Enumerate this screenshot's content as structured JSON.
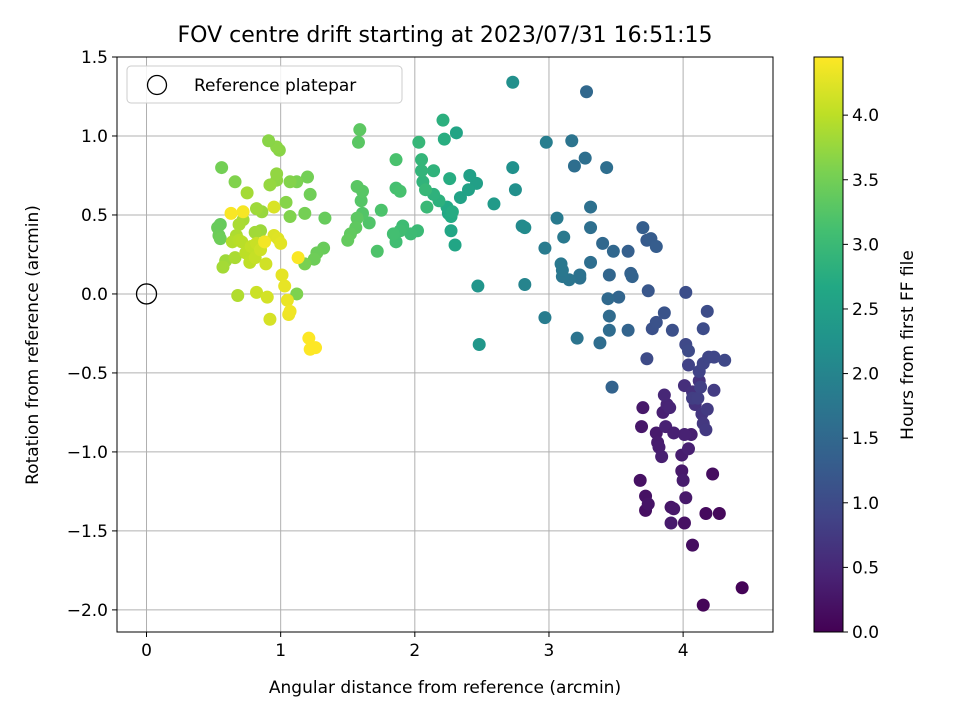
{
  "chart_data": {
    "type": "scatter",
    "title": "FOV centre drift starting at 2023/07/31 16:51:15",
    "xlabel": "Angular distance from reference (arcmin)",
    "ylabel": "Rotation from reference (arcmin)",
    "xlim": [
      -0.22,
      4.67
    ],
    "ylim": [
      -2.14,
      1.5
    ],
    "x_ticks": [
      0,
      1,
      2,
      3,
      4
    ],
    "x_tick_labels": [
      "0",
      "1",
      "2",
      "3",
      "4"
    ],
    "y_ticks": [
      -2.0,
      -1.5,
      -1.0,
      -0.5,
      0.0,
      0.5,
      1.0,
      1.5
    ],
    "y_tick_labels": [
      "−2.0",
      "−1.5",
      "−1.0",
      "−0.5",
      "0.0",
      "0.5",
      "1.0",
      "1.5"
    ],
    "grid": true,
    "legend": {
      "position": "upper-left",
      "entries": [
        "Reference platepar"
      ]
    },
    "reference_point": {
      "x": 0.0,
      "y": 0.0
    },
    "colorbar": {
      "label": "Hours from first FF file",
      "range": [
        0.0,
        4.45
      ],
      "ticks": [
        0.0,
        0.5,
        1.0,
        1.5,
        2.0,
        2.5,
        3.0,
        3.5,
        4.0
      ],
      "tick_labels": [
        "0.0",
        "0.5",
        "1.0",
        "1.5",
        "2.0",
        "2.5",
        "3.0",
        "3.5",
        "4.0"
      ],
      "colormap": "viridis"
    },
    "points": [
      {
        "x": 4.44,
        "y": -1.86,
        "h": 0.04
      },
      {
        "x": 4.15,
        "y": -1.97,
        "h": 0.06
      },
      {
        "x": 4.27,
        "y": -1.39,
        "h": 0.1
      },
      {
        "x": 4.17,
        "y": -1.39,
        "h": 0.12
      },
      {
        "x": 4.22,
        "y": -1.14,
        "h": 0.15
      },
      {
        "x": 3.72,
        "y": -1.28,
        "h": 0.22
      },
      {
        "x": 3.68,
        "y": -1.18,
        "h": 0.2
      },
      {
        "x": 3.72,
        "y": -1.37,
        "h": 0.18
      },
      {
        "x": 3.74,
        "y": -1.33,
        "h": 0.24
      },
      {
        "x": 3.91,
        "y": -1.35,
        "h": 0.26
      },
      {
        "x": 3.93,
        "y": -1.36,
        "h": 0.28
      },
      {
        "x": 4.02,
        "y": -1.29,
        "h": 0.3
      },
      {
        "x": 3.91,
        "y": -1.45,
        "h": 0.32
      },
      {
        "x": 4.01,
        "y": -1.45,
        "h": 0.2
      },
      {
        "x": 4.07,
        "y": -1.59,
        "h": 0.16
      },
      {
        "x": 3.99,
        "y": -1.12,
        "h": 0.3
      },
      {
        "x": 4.0,
        "y": -1.18,
        "h": 0.34
      },
      {
        "x": 3.99,
        "y": -1.02,
        "h": 0.36
      },
      {
        "x": 4.04,
        "y": -0.98,
        "h": 0.4
      },
      {
        "x": 4.06,
        "y": -0.89,
        "h": 0.38
      },
      {
        "x": 4.01,
        "y": -0.89,
        "h": 0.42
      },
      {
        "x": 3.7,
        "y": -0.72,
        "h": 0.3
      },
      {
        "x": 3.69,
        "y": -0.84,
        "h": 0.28
      },
      {
        "x": 3.8,
        "y": -0.88,
        "h": 0.32
      },
      {
        "x": 3.81,
        "y": -0.94,
        "h": 0.34
      },
      {
        "x": 3.82,
        "y": -0.97,
        "h": 0.36
      },
      {
        "x": 3.84,
        "y": -1.03,
        "h": 0.38
      },
      {
        "x": 3.85,
        "y": -0.75,
        "h": 0.4
      },
      {
        "x": 3.87,
        "y": -0.84,
        "h": 0.42
      },
      {
        "x": 3.88,
        "y": -0.7,
        "h": 0.44
      },
      {
        "x": 3.9,
        "y": -0.72,
        "h": 0.46
      },
      {
        "x": 3.86,
        "y": -0.64,
        "h": 0.48
      },
      {
        "x": 3.93,
        "y": -0.88,
        "h": 0.4
      },
      {
        "x": 4.01,
        "y": -0.58,
        "h": 0.6
      },
      {
        "x": 4.07,
        "y": -0.62,
        "h": 0.62
      },
      {
        "x": 4.09,
        "y": -0.7,
        "h": 0.64
      },
      {
        "x": 4.12,
        "y": -0.55,
        "h": 0.66
      },
      {
        "x": 4.14,
        "y": -0.76,
        "h": 0.7
      },
      {
        "x": 4.15,
        "y": -0.82,
        "h": 0.72
      },
      {
        "x": 4.17,
        "y": -0.86,
        "h": 0.74
      },
      {
        "x": 4.18,
        "y": -0.73,
        "h": 0.76
      },
      {
        "x": 4.23,
        "y": -0.61,
        "h": 0.78
      },
      {
        "x": 4.07,
        "y": -0.66,
        "h": 0.8
      },
      {
        "x": 4.11,
        "y": -0.66,
        "h": 0.82
      },
      {
        "x": 4.13,
        "y": -0.59,
        "h": 0.84
      },
      {
        "x": 4.04,
        "y": -0.45,
        "h": 0.86
      },
      {
        "x": 4.12,
        "y": -0.49,
        "h": 0.88
      },
      {
        "x": 4.15,
        "y": -0.44,
        "h": 0.9
      },
      {
        "x": 4.19,
        "y": -0.4,
        "h": 0.92
      },
      {
        "x": 4.23,
        "y": -0.4,
        "h": 0.94
      },
      {
        "x": 4.31,
        "y": -0.42,
        "h": 0.96
      },
      {
        "x": 4.02,
        "y": -0.32,
        "h": 0.98
      },
      {
        "x": 4.04,
        "y": -0.36,
        "h": 1.0
      },
      {
        "x": 4.15,
        "y": -0.22,
        "h": 1.02
      },
      {
        "x": 4.18,
        "y": -0.11,
        "h": 1.04
      },
      {
        "x": 4.02,
        "y": 0.01,
        "h": 1.06
      },
      {
        "x": 3.92,
        "y": -0.23,
        "h": 1.08
      },
      {
        "x": 3.77,
        "y": -0.22,
        "h": 1.1
      },
      {
        "x": 3.8,
        "y": -0.18,
        "h": 1.12
      },
      {
        "x": 3.86,
        "y": -0.12,
        "h": 1.14
      },
      {
        "x": 3.73,
        "y": -0.41,
        "h": 1.0
      },
      {
        "x": 3.74,
        "y": 0.02,
        "h": 1.2
      },
      {
        "x": 3.73,
        "y": 0.34,
        "h": 1.25
      },
      {
        "x": 3.76,
        "y": 0.35,
        "h": 1.28
      },
      {
        "x": 3.8,
        "y": 0.3,
        "h": 1.3
      },
      {
        "x": 3.7,
        "y": 0.42,
        "h": 1.32
      },
      {
        "x": 3.59,
        "y": 0.27,
        "h": 1.35
      },
      {
        "x": 3.61,
        "y": 0.13,
        "h": 1.38
      },
      {
        "x": 3.62,
        "y": 0.11,
        "h": 1.4
      },
      {
        "x": 3.59,
        "y": -0.23,
        "h": 1.42
      },
      {
        "x": 3.52,
        "y": -0.02,
        "h": 1.44
      },
      {
        "x": 3.45,
        "y": 0.12,
        "h": 1.46
      },
      {
        "x": 3.48,
        "y": 0.27,
        "h": 1.48
      },
      {
        "x": 3.4,
        "y": 0.32,
        "h": 1.5
      },
      {
        "x": 3.44,
        "y": -0.03,
        "h": 1.52
      },
      {
        "x": 3.45,
        "y": -0.14,
        "h": 1.54
      },
      {
        "x": 3.45,
        "y": -0.23,
        "h": 1.56
      },
      {
        "x": 3.47,
        "y": -0.59,
        "h": 1.4
      },
      {
        "x": 3.38,
        "y": -0.31,
        "h": 1.58
      },
      {
        "x": 3.31,
        "y": 0.2,
        "h": 1.6
      },
      {
        "x": 3.31,
        "y": 0.42,
        "h": 1.62
      },
      {
        "x": 3.31,
        "y": 0.55,
        "h": 1.64
      },
      {
        "x": 3.43,
        "y": 0.8,
        "h": 1.6
      },
      {
        "x": 3.23,
        "y": 0.1,
        "h": 1.66
      },
      {
        "x": 3.23,
        "y": 0.12,
        "h": 1.68
      },
      {
        "x": 3.21,
        "y": -0.28,
        "h": 1.7
      },
      {
        "x": 3.15,
        "y": 0.09,
        "h": 1.72
      },
      {
        "x": 3.1,
        "y": 0.11,
        "h": 1.74
      },
      {
        "x": 3.1,
        "y": 0.15,
        "h": 1.76
      },
      {
        "x": 3.09,
        "y": 0.19,
        "h": 1.78
      },
      {
        "x": 3.11,
        "y": 0.36,
        "h": 1.8
      },
      {
        "x": 3.06,
        "y": 0.48,
        "h": 1.82
      },
      {
        "x": 2.97,
        "y": 0.29,
        "h": 1.84
      },
      {
        "x": 2.97,
        "y": -0.15,
        "h": 1.86
      },
      {
        "x": 3.19,
        "y": 0.81,
        "h": 1.6
      },
      {
        "x": 3.27,
        "y": 0.86,
        "h": 1.62
      },
      {
        "x": 3.28,
        "y": 1.28,
        "h": 1.5
      },
      {
        "x": 3.17,
        "y": 0.97,
        "h": 1.7
      },
      {
        "x": 2.98,
        "y": 0.96,
        "h": 1.88
      },
      {
        "x": 2.82,
        "y": 0.06,
        "h": 2.0
      },
      {
        "x": 2.8,
        "y": 0.43,
        "h": 2.1
      },
      {
        "x": 2.82,
        "y": 0.42,
        "h": 2.12
      },
      {
        "x": 2.75,
        "y": 0.66,
        "h": 2.2
      },
      {
        "x": 2.73,
        "y": 0.8,
        "h": 2.22
      },
      {
        "x": 2.73,
        "y": 1.34,
        "h": 2.2
      },
      {
        "x": 2.47,
        "y": 0.05,
        "h": 2.3
      },
      {
        "x": 2.48,
        "y": -0.32,
        "h": 2.35
      },
      {
        "x": 2.59,
        "y": 0.57,
        "h": 2.4
      },
      {
        "x": 2.46,
        "y": 0.7,
        "h": 2.5
      },
      {
        "x": 2.41,
        "y": 0.75,
        "h": 2.52
      },
      {
        "x": 2.4,
        "y": 0.66,
        "h": 2.54
      },
      {
        "x": 2.34,
        "y": 0.61,
        "h": 2.56
      },
      {
        "x": 2.31,
        "y": 1.02,
        "h": 2.6
      },
      {
        "x": 2.3,
        "y": 0.31,
        "h": 2.62
      },
      {
        "x": 2.27,
        "y": 0.4,
        "h": 2.64
      },
      {
        "x": 2.25,
        "y": 0.51,
        "h": 2.66
      },
      {
        "x": 2.24,
        "y": 0.55,
        "h": 2.68
      },
      {
        "x": 2.27,
        "y": 0.49,
        "h": 2.7
      },
      {
        "x": 2.28,
        "y": 0.52,
        "h": 2.72
      },
      {
        "x": 2.26,
        "y": 0.73,
        "h": 2.74
      },
      {
        "x": 2.22,
        "y": 0.98,
        "h": 2.76
      },
      {
        "x": 2.21,
        "y": 1.1,
        "h": 2.8
      },
      {
        "x": 2.18,
        "y": 0.59,
        "h": 2.82
      },
      {
        "x": 2.14,
        "y": 0.63,
        "h": 2.84
      },
      {
        "x": 2.14,
        "y": 0.78,
        "h": 2.86
      },
      {
        "x": 2.06,
        "y": 0.71,
        "h": 2.88
      },
      {
        "x": 2.05,
        "y": 0.78,
        "h": 2.9
      },
      {
        "x": 2.05,
        "y": 0.85,
        "h": 2.92
      },
      {
        "x": 2.03,
        "y": 0.96,
        "h": 2.94
      },
      {
        "x": 2.08,
        "y": 0.66,
        "h": 2.96
      },
      {
        "x": 2.09,
        "y": 0.55,
        "h": 2.98
      },
      {
        "x": 2.02,
        "y": 0.4,
        "h": 3.0
      },
      {
        "x": 1.97,
        "y": 0.38,
        "h": 3.02
      },
      {
        "x": 1.91,
        "y": 0.43,
        "h": 3.04
      },
      {
        "x": 1.89,
        "y": 0.4,
        "h": 3.06
      },
      {
        "x": 1.86,
        "y": 0.33,
        "h": 3.08
      },
      {
        "x": 1.84,
        "y": 0.38,
        "h": 3.1
      },
      {
        "x": 1.86,
        "y": 0.67,
        "h": 3.12
      },
      {
        "x": 1.89,
        "y": 0.65,
        "h": 3.14
      },
      {
        "x": 1.86,
        "y": 0.85,
        "h": 3.16
      },
      {
        "x": 1.75,
        "y": 0.53,
        "h": 3.18
      },
      {
        "x": 1.72,
        "y": 0.27,
        "h": 3.2
      },
      {
        "x": 1.66,
        "y": 0.45,
        "h": 3.22
      },
      {
        "x": 1.61,
        "y": 0.51,
        "h": 3.24
      },
      {
        "x": 1.6,
        "y": 0.59,
        "h": 3.26
      },
      {
        "x": 1.61,
        "y": 0.65,
        "h": 3.28
      },
      {
        "x": 1.57,
        "y": 0.68,
        "h": 3.3
      },
      {
        "x": 1.57,
        "y": 0.48,
        "h": 3.32
      },
      {
        "x": 1.56,
        "y": 0.42,
        "h": 3.34
      },
      {
        "x": 1.58,
        "y": 0.96,
        "h": 3.3
      },
      {
        "x": 1.59,
        "y": 1.04,
        "h": 3.32
      },
      {
        "x": 1.52,
        "y": 0.38,
        "h": 3.36
      },
      {
        "x": 1.5,
        "y": 0.34,
        "h": 3.38
      },
      {
        "x": 1.33,
        "y": 0.48,
        "h": 3.4
      },
      {
        "x": 1.32,
        "y": 0.29,
        "h": 3.42
      },
      {
        "x": 1.27,
        "y": 0.26,
        "h": 3.44
      },
      {
        "x": 1.25,
        "y": 0.22,
        "h": 3.46
      },
      {
        "x": 1.22,
        "y": 0.63,
        "h": 3.48
      },
      {
        "x": 1.2,
        "y": 0.74,
        "h": 3.5
      },
      {
        "x": 1.18,
        "y": 0.51,
        "h": 3.52
      },
      {
        "x": 1.18,
        "y": 0.19,
        "h": 3.54
      },
      {
        "x": 1.12,
        "y": 0.71,
        "h": 3.56
      },
      {
        "x": 1.12,
        "y": 0.0,
        "h": 3.58
      },
      {
        "x": 1.07,
        "y": 0.49,
        "h": 3.6
      },
      {
        "x": 1.07,
        "y": 0.71,
        "h": 3.62
      },
      {
        "x": 1.04,
        "y": 0.58,
        "h": 3.64
      },
      {
        "x": 0.99,
        "y": 0.91,
        "h": 3.66
      },
      {
        "x": 0.97,
        "y": 0.93,
        "h": 3.68
      },
      {
        "x": 0.97,
        "y": 0.72,
        "h": 3.7
      },
      {
        "x": 0.97,
        "y": 0.76,
        "h": 3.72
      },
      {
        "x": 0.91,
        "y": 0.97,
        "h": 3.66
      },
      {
        "x": 0.92,
        "y": 0.69,
        "h": 3.74
      },
      {
        "x": 0.86,
        "y": 0.52,
        "h": 3.76
      },
      {
        "x": 0.85,
        "y": 0.4,
        "h": 3.78
      },
      {
        "x": 0.82,
        "y": 0.54,
        "h": 3.8
      },
      {
        "x": 0.81,
        "y": 0.39,
        "h": 3.82
      },
      {
        "x": 0.75,
        "y": 0.64,
        "h": 3.84
      },
      {
        "x": 0.72,
        "y": 0.47,
        "h": 3.86
      },
      {
        "x": 0.69,
        "y": 0.44,
        "h": 3.88
      },
      {
        "x": 0.67,
        "y": 0.37,
        "h": 3.9
      },
      {
        "x": 0.66,
        "y": 0.71,
        "h": 3.6
      },
      {
        "x": 0.56,
        "y": 0.8,
        "h": 3.5
      },
      {
        "x": 0.55,
        "y": 0.44,
        "h": 3.4
      },
      {
        "x": 0.53,
        "y": 0.42,
        "h": 3.42
      },
      {
        "x": 0.54,
        "y": 0.37,
        "h": 3.44
      },
      {
        "x": 0.55,
        "y": 0.35,
        "h": 3.46
      },
      {
        "x": 0.59,
        "y": 0.21,
        "h": 3.8
      },
      {
        "x": 0.57,
        "y": 0.17,
        "h": 3.84
      },
      {
        "x": 0.66,
        "y": 0.23,
        "h": 3.88
      },
      {
        "x": 0.68,
        "y": -0.01,
        "h": 3.92
      },
      {
        "x": 0.64,
        "y": 0.33,
        "h": 3.94
      },
      {
        "x": 0.69,
        "y": 0.34,
        "h": 3.96
      },
      {
        "x": 0.71,
        "y": 0.33,
        "h": 3.98
      },
      {
        "x": 0.74,
        "y": 0.26,
        "h": 4.0
      },
      {
        "x": 0.77,
        "y": 0.2,
        "h": 4.02
      },
      {
        "x": 0.78,
        "y": 0.3,
        "h": 4.04
      },
      {
        "x": 0.81,
        "y": 0.23,
        "h": 4.06
      },
      {
        "x": 0.82,
        "y": 0.32,
        "h": 4.08
      },
      {
        "x": 0.82,
        "y": 0.01,
        "h": 4.1
      },
      {
        "x": 0.85,
        "y": 0.28,
        "h": 4.12
      },
      {
        "x": 0.89,
        "y": 0.19,
        "h": 4.14
      },
      {
        "x": 0.9,
        "y": -0.02,
        "h": 4.16
      },
      {
        "x": 0.92,
        "y": -0.16,
        "h": 4.18
      },
      {
        "x": 0.95,
        "y": 0.55,
        "h": 4.2
      },
      {
        "x": 0.95,
        "y": 0.37,
        "h": 4.22
      },
      {
        "x": 0.98,
        "y": 0.35,
        "h": 4.24
      },
      {
        "x": 1.0,
        "y": 0.32,
        "h": 4.26
      },
      {
        "x": 1.01,
        "y": 0.12,
        "h": 4.28
      },
      {
        "x": 1.03,
        "y": 0.05,
        "h": 4.3
      },
      {
        "x": 1.05,
        "y": -0.04,
        "h": 4.32
      },
      {
        "x": 1.06,
        "y": -0.13,
        "h": 4.34
      },
      {
        "x": 1.07,
        "y": -0.11,
        "h": 4.36
      },
      {
        "x": 0.88,
        "y": 0.33,
        "h": 4.38
      },
      {
        "x": 0.72,
        "y": 0.52,
        "h": 4.4
      },
      {
        "x": 0.63,
        "y": 0.51,
        "h": 4.42
      },
      {
        "x": 1.13,
        "y": 0.23,
        "h": 4.43
      },
      {
        "x": 1.21,
        "y": -0.28,
        "h": 4.44
      },
      {
        "x": 1.22,
        "y": -0.35,
        "h": 4.44
      },
      {
        "x": 1.26,
        "y": -0.34,
        "h": 4.45
      }
    ]
  }
}
